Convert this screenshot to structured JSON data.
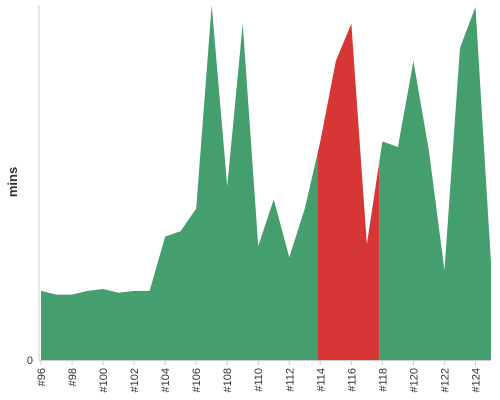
{
  "colors": {
    "green": "#459e6d",
    "red": "#d63636",
    "axis": "#cccccc",
    "text": "#333333"
  },
  "chart_data": {
    "type": "area",
    "title": "",
    "xlabel": "",
    "ylabel": "mins",
    "ylim": [
      0,
      19
    ],
    "y_ticks": [
      {
        "value": 0,
        "label": "0"
      }
    ],
    "x": [
      96,
      97,
      98,
      99,
      100,
      101,
      102,
      103,
      104,
      105,
      106,
      107,
      108,
      109,
      110,
      111,
      112,
      113,
      114,
      115,
      116,
      117,
      118,
      119,
      120,
      121,
      122,
      123,
      124,
      125
    ],
    "x_tick_labels": [
      "#96",
      "#98",
      "#100",
      "#102",
      "#104",
      "#106",
      "#108",
      "#110",
      "#112",
      "#114",
      "#116",
      "#118",
      "#120",
      "#122",
      "#124"
    ],
    "series": [
      {
        "values": [
          3.7,
          3.5,
          3.5,
          3.7,
          3.8,
          3.6,
          3.7,
          3.7,
          6.6,
          6.9,
          8.1,
          19.0,
          9.3,
          18.0,
          6.1,
          8.6,
          5.5,
          8.1,
          11.7,
          16.0,
          18.0,
          6.2,
          11.7,
          11.4,
          16.0,
          11.2,
          4.8,
          16.7,
          18.9,
          5.2
        ],
        "segments": [
          {
            "from": 96,
            "to": 113.8,
            "color": "#459e6d"
          },
          {
            "from": 113.8,
            "to": 117.8,
            "color": "#d63636"
          },
          {
            "from": 117.8,
            "to": 125,
            "color": "#459e6d"
          }
        ]
      }
    ]
  }
}
